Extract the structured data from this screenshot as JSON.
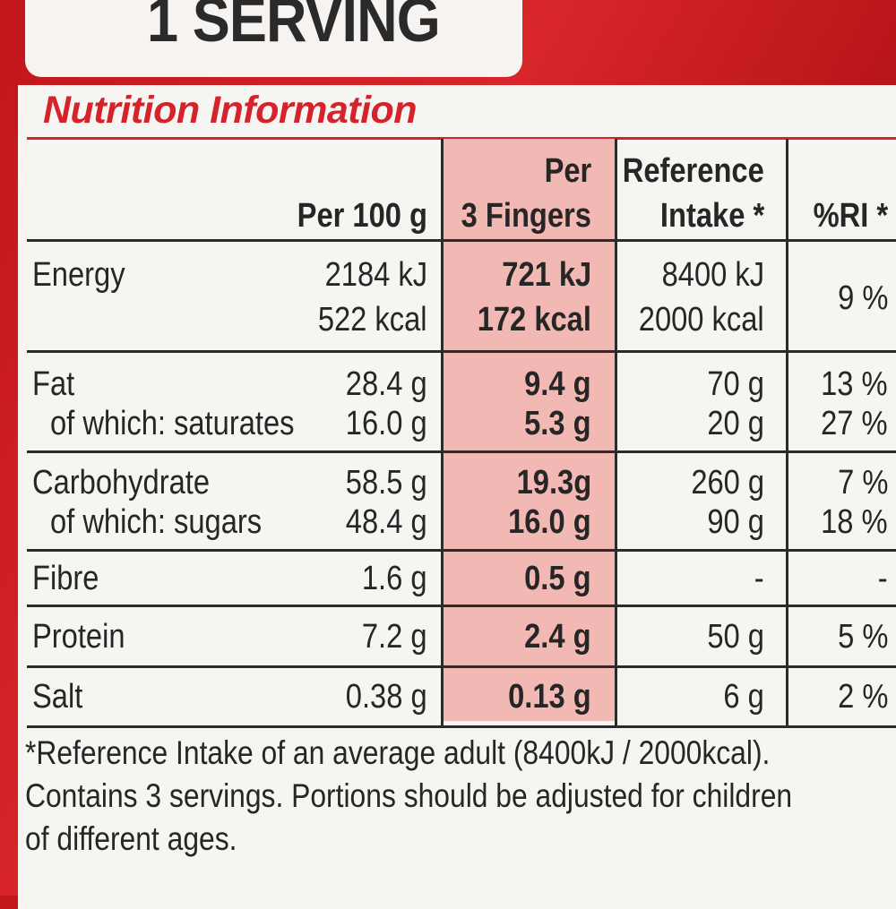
{
  "serving_label": "1 SERVING",
  "title": "Nutrition Information",
  "headers": {
    "per100_line1": "Per 100 g",
    "per3_line1": "Per",
    "per3_line2": "3 Fingers",
    "ri_line1": "Reference",
    "ri_line2": "Intake *",
    "pct_line1": "%RI *"
  },
  "rows": [
    {
      "name": "Energy",
      "per100": "2184 kJ",
      "per3": "721 kJ",
      "ri": "8400 kJ",
      "pct": "9 %"
    },
    {
      "name": "",
      "per100": "522 kcal",
      "per3": "172 kcal",
      "ri": "2000 kcal",
      "pct": ""
    },
    {
      "name": "Fat",
      "per100": "28.4 g",
      "per3": "9.4 g",
      "ri": "70 g",
      "pct": "13 %"
    },
    {
      "name": "of which: saturates",
      "per100": "16.0 g",
      "per3": "5.3 g",
      "ri": "20 g",
      "pct": "27 %"
    },
    {
      "name": "Carbohydrate",
      "per100": "58.5 g",
      "per3": "19.3g",
      "ri": "260 g",
      "pct": "7 %"
    },
    {
      "name": "of which: sugars",
      "per100": "48.4 g",
      "per3": "16.0 g",
      "ri": "90 g",
      "pct": "18 %"
    },
    {
      "name": "Fibre",
      "per100": "1.6 g",
      "per3": "0.5 g",
      "ri": "-",
      "pct": "-"
    },
    {
      "name": "Protein",
      "per100": "7.2 g",
      "per3": "2.4 g",
      "ri": "50 g",
      "pct": "5 %"
    },
    {
      "name": "Salt",
      "per100": "0.38 g",
      "per3": "0.13 g",
      "ri": "6 g",
      "pct": "2 %"
    }
  ],
  "footnote": [
    "*Reference Intake of an average adult (8400kJ / 2000kcal).",
    "Contains 3 servings. Portions should be adjusted for children",
    "of different ages."
  ],
  "colors": {
    "brand_red": "#d4232a",
    "highlight": "#f2b8b3",
    "panel": "#f7f5f2"
  }
}
